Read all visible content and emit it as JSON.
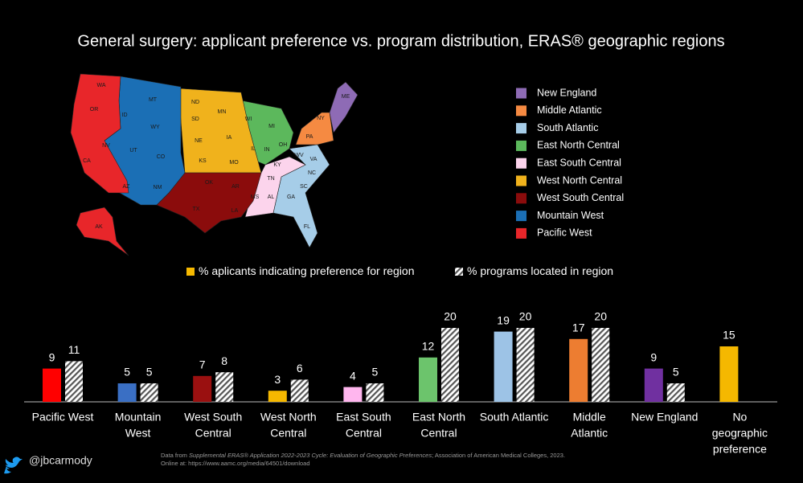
{
  "chart_data": {
    "type": "bar",
    "title": "General surgery: applicant preference vs. program distribution, ERAS® geographic regions",
    "categories": [
      [
        "Pacific West"
      ],
      [
        "Mountain",
        "West"
      ],
      [
        "West South",
        "Central"
      ],
      [
        "West North",
        "Central"
      ],
      [
        "East South",
        "Central"
      ],
      [
        "East North",
        "Central"
      ],
      [
        "South Atlantic"
      ],
      [
        "Middle",
        "Atlantic"
      ],
      [
        "New England"
      ],
      [
        "No",
        "geographic",
        "preference"
      ]
    ],
    "series": [
      {
        "name": "% aplicants indicating preference for region",
        "color": "#f5b800",
        "bar_colors": [
          "#ff0000",
          "#3a6fc4",
          "#9a1010",
          "#f5b800",
          "#ffb6ee",
          "#6cc46c",
          "#9dc3e6",
          "#ed7d31",
          "#7030a0",
          "#f5b800"
        ],
        "values": [
          9,
          5,
          7,
          3,
          4,
          12,
          19,
          17,
          9,
          15
        ]
      },
      {
        "name": "% programs located in region",
        "pattern": "hatch",
        "values": [
          11,
          5,
          8,
          6,
          5,
          20,
          20,
          20,
          5,
          null
        ]
      }
    ]
  },
  "map": {
    "regions": [
      {
        "name": "New England",
        "color": "#8e6bb5",
        "states": [
          "ME"
        ]
      },
      {
        "name": "Middle Atlantic",
        "color": "#f58a42",
        "states": [
          "NY",
          "PA"
        ]
      },
      {
        "name": "South Atlantic",
        "color": "#a6cde8",
        "states": [
          "WV",
          "VA",
          "NC",
          "SC",
          "GA",
          "FL"
        ]
      },
      {
        "name": "East North Central",
        "color": "#5cb85c",
        "states": [
          "WI",
          "MI",
          "IL",
          "IN",
          "OH"
        ]
      },
      {
        "name": "East South Central",
        "color": "#fcd4ec",
        "states": [
          "KY",
          "TN",
          "MS",
          "AL"
        ]
      },
      {
        "name": "West North Central",
        "color": "#f0b21c",
        "states": [
          "ND",
          "MN",
          "SD",
          "NE",
          "IA",
          "KS",
          "MO"
        ]
      },
      {
        "name": "West South Central",
        "color": "#8b0c0c",
        "states": [
          "OK",
          "AR",
          "TX",
          "LA"
        ]
      },
      {
        "name": "Mountain West",
        "color": "#1b6fb5",
        "states": [
          "MT",
          "ID",
          "WY",
          "NV",
          "UT",
          "CO",
          "AZ",
          "NM"
        ]
      },
      {
        "name": "Pacific West",
        "color": "#e8262a",
        "states": [
          "WA",
          "OR",
          "CA",
          "AK"
        ]
      }
    ]
  },
  "footer": {
    "handle": "@jbcarmody",
    "source_prefix": "Data from ",
    "source_title": "Supplemental ERAS® Application 2022-2023 Cycle: Evaluation of Geographic Preferences",
    "source_suffix": "; Association of American Medical Colleges, 2023.",
    "source_url": "Online at: https://www.aamc.org/media/64501/download"
  }
}
